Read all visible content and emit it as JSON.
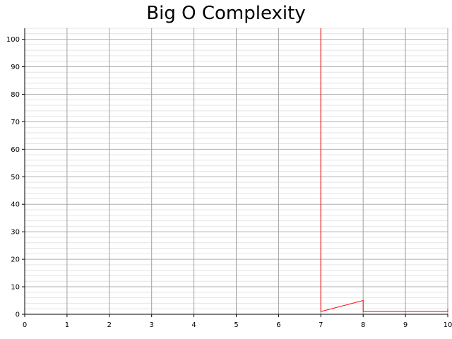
{
  "chart_data": {
    "type": "line",
    "title": "Big O Complexity",
    "xlabel": "",
    "ylabel": "",
    "xlim": [
      0,
      10
    ],
    "ylim": [
      0,
      104
    ],
    "x_ticks": [
      0,
      1,
      2,
      3,
      4,
      5,
      6,
      7,
      8,
      9,
      10
    ],
    "y_ticks": [
      0,
      10,
      20,
      30,
      40,
      50,
      60,
      70,
      80,
      90,
      100
    ],
    "grid": true,
    "minor_grid": true,
    "legend": "none",
    "series": [
      {
        "color": "#ff0000",
        "x": [
          7,
          7,
          8,
          8,
          10,
          10
        ],
        "y": [
          104,
          1,
          5,
          1,
          1,
          2
        ]
      }
    ]
  }
}
